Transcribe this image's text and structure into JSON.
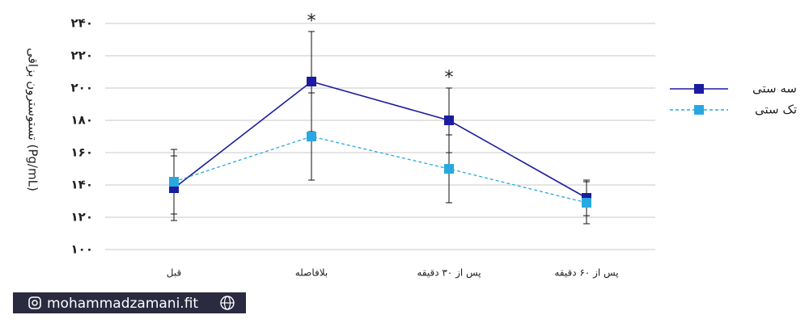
{
  "chart_data": {
    "type": "line",
    "y_label": "تستوسترون بزاقی  (Pg/mL)",
    "categories": [
      "قبل",
      "بلافاصله",
      "پس از ۳۰ دقیقه",
      "پس از ۶۰ دقیقه"
    ],
    "series": [
      {
        "name": "سه ستی",
        "color": "#1c1ca0",
        "dashed": false,
        "values": [
          138,
          204,
          180,
          132
        ],
        "errors": [
          20,
          31,
          20,
          11
        ]
      },
      {
        "name": "تک ستی",
        "color": "#29a8e0",
        "dashed": true,
        "values": [
          142,
          170,
          150,
          129
        ],
        "errors": [
          20,
          27,
          21,
          13
        ]
      }
    ],
    "annotations": [
      "*",
      "*"
    ],
    "ylim": [
      100,
      240
    ],
    "yticks": [
      {
        "value": 100,
        "label": "۱۰۰"
      },
      {
        "value": 120,
        "label": "۱۲۰"
      },
      {
        "value": 140,
        "label": "۱۴۰"
      },
      {
        "value": 160,
        "label": "۱۶۰"
      },
      {
        "value": 180,
        "label": "۱۸۰"
      },
      {
        "value": 200,
        "label": "۲۰۰"
      },
      {
        "value": 220,
        "label": "۲۲۰"
      },
      {
        "value": 240,
        "label": "۲۴۰"
      }
    ],
    "grid": true,
    "watermark": "mohammadzamani.fit"
  }
}
